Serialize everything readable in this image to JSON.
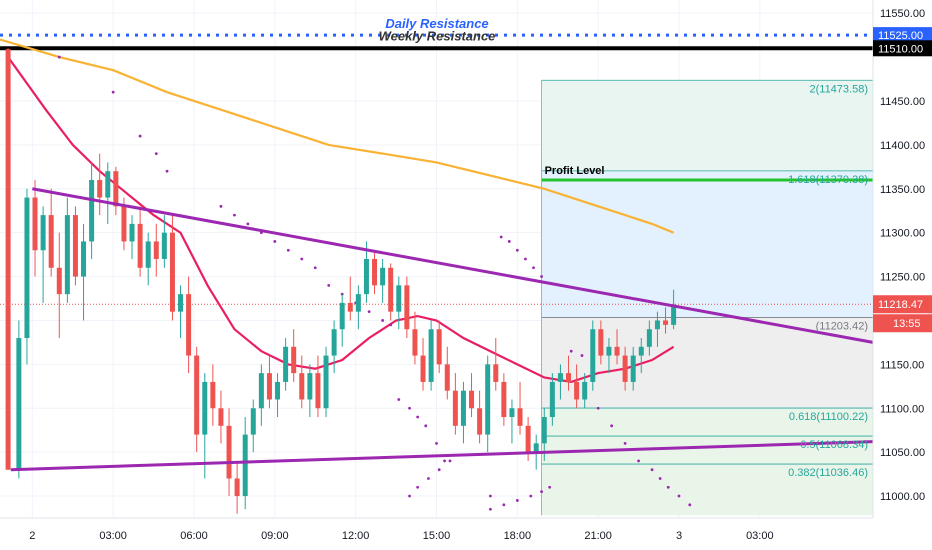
{
  "chart_data": {
    "type": "candlestick",
    "y_axis": {
      "ticks": [
        "11000.00",
        "11050.00",
        "11100.00",
        "11150.00",
        "11200.00",
        "11250.00",
        "11300.00",
        "11350.00",
        "11400.00",
        "11450.00",
        "11550.00"
      ],
      "range": [
        10975,
        11565
      ],
      "position": "right"
    },
    "x_axis": {
      "ticks": [
        "2",
        "03:00",
        "06:00",
        "09:00",
        "12:00",
        "15:00",
        "18:00",
        "21:00",
        "3",
        "03:00"
      ],
      "start_hour": -1.2,
      "end_hour": 31.2
    },
    "horizontal_levels": [
      {
        "name": "Daily Resistance",
        "value": 11525.0,
        "label": "11525.00",
        "style": "dotted",
        "color": "#2962ff"
      },
      {
        "name": "Weekly Resistance",
        "value": 11510.0,
        "label": "11510.00",
        "style": "solid",
        "color": "#000000"
      },
      {
        "name": "Profit Level",
        "value": 11360.0,
        "style": "solid",
        "color": "#22c32e"
      }
    ],
    "trendlines": [
      {
        "name": "upper",
        "from": [
          0.0,
          11350
        ],
        "to": [
          31.2,
          11175
        ],
        "color": "#9c27b0"
      },
      {
        "name": "lower",
        "from": [
          -0.8,
          11030
        ],
        "to": [
          31.2,
          11062
        ],
        "color": "#9c27b0"
      }
    ],
    "fibonacci": {
      "start_hour": 18.9,
      "end_hour": 31.2,
      "levels": [
        {
          "label": "2(11473.58)",
          "value": 11473.58
        },
        {
          "label": "1.618(11370.38)",
          "value": 11370.38
        },
        {
          "label": "(11203.42)",
          "value": 11203.42
        },
        {
          "label": "0.618(11100.22)",
          "value": 11100.22
        },
        {
          "label": "0.5(11068.34)",
          "value": 11068.34
        },
        {
          "label": "0.382(11036.46)",
          "value": 11036.46
        }
      ],
      "top": 11473.58,
      "base": 11203.42,
      "bottom": 10978
    },
    "current_price": {
      "value": 11218.47,
      "label": "11218.47",
      "timer": "13:55"
    },
    "candles": [
      [
        -0.9,
        11509,
        11510,
        11030,
        11030
      ],
      [
        -0.5,
        11030,
        11200,
        11020,
        11180
      ],
      [
        -0.2,
        11180,
        11350,
        11150,
        11340
      ],
      [
        0.1,
        11340,
        11360,
        11250,
        11280
      ],
      [
        0.4,
        11280,
        11330,
        11220,
        11320
      ],
      [
        0.7,
        11320,
        11350,
        11250,
        11260
      ],
      [
        1.0,
        11260,
        11300,
        11180,
        11230
      ],
      [
        1.3,
        11230,
        11340,
        11220,
        11320
      ],
      [
        1.6,
        11320,
        11330,
        11240,
        11250
      ],
      [
        1.9,
        11250,
        11310,
        11200,
        11290
      ],
      [
        2.2,
        11290,
        11380,
        11270,
        11360
      ],
      [
        2.5,
        11360,
        11390,
        11320,
        11340
      ],
      [
        2.8,
        11340,
        11380,
        11310,
        11370
      ],
      [
        3.1,
        11370,
        11375,
        11320,
        11330
      ],
      [
        3.4,
        11330,
        11340,
        11280,
        11290
      ],
      [
        3.7,
        11290,
        11320,
        11270,
        11310
      ],
      [
        4.0,
        11310,
        11330,
        11250,
        11260
      ],
      [
        4.3,
        11260,
        11300,
        11240,
        11290
      ],
      [
        4.6,
        11290,
        11310,
        11250,
        11270
      ],
      [
        4.9,
        11270,
        11320,
        11260,
        11300
      ],
      [
        5.2,
        11300,
        11320,
        11200,
        11210
      ],
      [
        5.5,
        11210,
        11240,
        11180,
        11230
      ],
      [
        5.8,
        11230,
        11250,
        11140,
        11160
      ],
      [
        6.1,
        11160,
        11170,
        11050,
        11070
      ],
      [
        6.4,
        11070,
        11140,
        11020,
        11130
      ],
      [
        6.7,
        11130,
        11150,
        11080,
        11100
      ],
      [
        7.0,
        11100,
        11120,
        11060,
        11080
      ],
      [
        7.3,
        11080,
        11100,
        11000,
        11020
      ],
      [
        7.6,
        11020,
        11040,
        10980,
        11000
      ],
      [
        7.9,
        11000,
        11090,
        10985,
        11070
      ],
      [
        8.2,
        11070,
        11110,
        11050,
        11100
      ],
      [
        8.5,
        11100,
        11150,
        11080,
        11140
      ],
      [
        8.8,
        11140,
        11160,
        11100,
        11110
      ],
      [
        9.1,
        11110,
        11140,
        11090,
        11130
      ],
      [
        9.4,
        11130,
        11180,
        11120,
        11170
      ],
      [
        9.7,
        11170,
        11190,
        11130,
        11140
      ],
      [
        10.0,
        11140,
        11160,
        11100,
        11110
      ],
      [
        10.3,
        11110,
        11150,
        11090,
        11140
      ],
      [
        10.6,
        11140,
        11160,
        11090,
        11100
      ],
      [
        10.9,
        11100,
        11170,
        11090,
        11160
      ],
      [
        11.2,
        11160,
        11200,
        11140,
        11190
      ],
      [
        11.5,
        11190,
        11230,
        11170,
        11220
      ],
      [
        11.8,
        11220,
        11250,
        11200,
        11210
      ],
      [
        12.1,
        11210,
        11240,
        11190,
        11230
      ],
      [
        12.4,
        11230,
        11290,
        11220,
        11270
      ],
      [
        12.7,
        11270,
        11280,
        11230,
        11240
      ],
      [
        13.0,
        11240,
        11270,
        11220,
        11260
      ],
      [
        13.3,
        11260,
        11265,
        11200,
        11210
      ],
      [
        13.6,
        11210,
        11250,
        11190,
        11240
      ],
      [
        13.9,
        11240,
        11250,
        11180,
        11190
      ],
      [
        14.2,
        11190,
        11210,
        11150,
        11160
      ],
      [
        14.5,
        11160,
        11180,
        11120,
        11130
      ],
      [
        14.8,
        11130,
        11200,
        11120,
        11190
      ],
      [
        15.1,
        11190,
        11200,
        11140,
        11150
      ],
      [
        15.4,
        11150,
        11170,
        11110,
        11120
      ],
      [
        15.7,
        11120,
        11140,
        11070,
        11080
      ],
      [
        16.0,
        11080,
        11130,
        11060,
        11120
      ],
      [
        16.3,
        11120,
        11140,
        11090,
        11100
      ],
      [
        16.6,
        11100,
        11120,
        11060,
        11070
      ],
      [
        16.9,
        11070,
        11160,
        11050,
        11150
      ],
      [
        17.2,
        11150,
        11180,
        11120,
        11130
      ],
      [
        17.5,
        11130,
        11140,
        11080,
        11090
      ],
      [
        17.8,
        11090,
        11110,
        11060,
        11100
      ],
      [
        18.1,
        11100,
        11130,
        11070,
        11080
      ],
      [
        18.4,
        11080,
        11090,
        11040,
        11050
      ],
      [
        18.7,
        11050,
        11070,
        11030,
        11060
      ],
      [
        19.0,
        11060,
        11100,
        11040,
        11090
      ],
      [
        19.3,
        11090,
        11140,
        11080,
        11130
      ],
      [
        19.6,
        11130,
        11150,
        11110,
        11140
      ],
      [
        19.9,
        11140,
        11160,
        11120,
        11130
      ],
      [
        20.2,
        11130,
        11150,
        11100,
        11110
      ],
      [
        20.5,
        11110,
        11140,
        11100,
        11130
      ],
      [
        20.8,
        11130,
        11200,
        11120,
        11190
      ],
      [
        21.1,
        11190,
        11200,
        11150,
        11160
      ],
      [
        21.4,
        11160,
        11180,
        11140,
        11170
      ],
      [
        21.7,
        11170,
        11190,
        11150,
        11160
      ],
      [
        22.0,
        11160,
        11170,
        11120,
        11130
      ],
      [
        22.3,
        11130,
        11170,
        11120,
        11160
      ],
      [
        22.6,
        11160,
        11180,
        11140,
        11170
      ],
      [
        22.9,
        11170,
        11200,
        11160,
        11190
      ],
      [
        23.2,
        11190,
        11210,
        11170,
        11200
      ],
      [
        23.5,
        11200,
        11215,
        11185,
        11195
      ],
      [
        23.8,
        11195,
        11235,
        11190,
        11218
      ]
    ],
    "ma_red": [
      [
        -0.9,
        11500
      ],
      [
        0.5,
        11440
      ],
      [
        1.5,
        11400
      ],
      [
        2.5,
        11370
      ],
      [
        3.5,
        11345
      ],
      [
        4.5,
        11320
      ],
      [
        5.5,
        11300
      ],
      [
        6.5,
        11240
      ],
      [
        7.5,
        11190
      ],
      [
        8.5,
        11165
      ],
      [
        9.5,
        11150
      ],
      [
        10.5,
        11145
      ],
      [
        11.5,
        11155
      ],
      [
        12.5,
        11180
      ],
      [
        13.5,
        11200
      ],
      [
        14.3,
        11205
      ],
      [
        15.0,
        11200
      ],
      [
        16.0,
        11180
      ],
      [
        17.0,
        11165
      ],
      [
        18.0,
        11150
      ],
      [
        19.0,
        11135
      ],
      [
        20.0,
        11130
      ],
      [
        21.0,
        11140
      ],
      [
        22.0,
        11145
      ],
      [
        23.0,
        11155
      ],
      [
        23.8,
        11170
      ]
    ],
    "ma_orange": [
      [
        -1.2,
        11520
      ],
      [
        1.0,
        11500
      ],
      [
        3.0,
        11485
      ],
      [
        5.0,
        11460
      ],
      [
        7.0,
        11440
      ],
      [
        9.0,
        11420
      ],
      [
        11.0,
        11400
      ],
      [
        13.0,
        11390
      ],
      [
        15.0,
        11380
      ],
      [
        17.0,
        11365
      ],
      [
        19.0,
        11350
      ],
      [
        21.0,
        11330
      ],
      [
        23.0,
        11310
      ],
      [
        23.8,
        11300
      ]
    ],
    "psar": [
      [
        1.0,
        11500
      ],
      [
        3.0,
        11460
      ],
      [
        4.0,
        11410
      ],
      [
        4.6,
        11390
      ],
      [
        5.0,
        11370
      ],
      [
        7.0,
        11330
      ],
      [
        7.5,
        11320
      ],
      [
        8.0,
        11310
      ],
      [
        8.5,
        11300
      ],
      [
        9.0,
        11290
      ],
      [
        9.5,
        11280
      ],
      [
        10.0,
        11270
      ],
      [
        10.5,
        11260
      ],
      [
        11.0,
        11240
      ],
      [
        11.5,
        11230
      ],
      [
        12.0,
        11220
      ],
      [
        12.5,
        11210
      ],
      [
        13.0,
        11200
      ],
      [
        13.3,
        11195
      ],
      [
        13.6,
        11110
      ],
      [
        14.0,
        11100
      ],
      [
        14.3,
        11090
      ],
      [
        14.6,
        11080
      ],
      [
        15.0,
        11060
      ],
      [
        15.3,
        11040
      ],
      [
        14.0,
        11000
      ],
      [
        14.3,
        11010
      ],
      [
        14.7,
        11020
      ],
      [
        15.1,
        11030
      ],
      [
        15.5,
        11040
      ],
      [
        17.0,
        10985
      ],
      [
        17.5,
        10990
      ],
      [
        18.0,
        10995
      ],
      [
        18.5,
        11000
      ],
      [
        18.9,
        11005
      ],
      [
        19.2,
        11010
      ],
      [
        17.0,
        11000
      ],
      [
        17.4,
        11295
      ],
      [
        17.7,
        11290
      ],
      [
        18.0,
        11280
      ],
      [
        18.3,
        11270
      ],
      [
        18.6,
        11260
      ],
      [
        18.9,
        11250
      ],
      [
        20.0,
        11165
      ],
      [
        20.4,
        11160
      ],
      [
        21.0,
        11100
      ],
      [
        21.5,
        11080
      ],
      [
        22.0,
        11060
      ],
      [
        22.5,
        11040
      ],
      [
        23.0,
        11030
      ],
      [
        23.3,
        11020
      ],
      [
        23.6,
        11010
      ],
      [
        24.0,
        11000
      ],
      [
        24.4,
        10990
      ]
    ]
  }
}
